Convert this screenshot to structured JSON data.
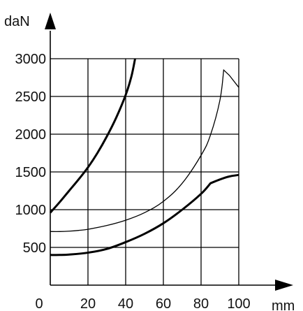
{
  "chart_data": {
    "type": "line",
    "title": "",
    "xlabel": "mm",
    "ylabel": "daN",
    "xlim": [
      0,
      100
    ],
    "ylim": [
      0,
      3000
    ],
    "x_ticks": [
      0,
      20,
      40,
      60,
      80,
      100
    ],
    "y_ticks": [
      500,
      1000,
      1500,
      2000,
      2500,
      3000
    ],
    "x_tick_labels": [
      "0",
      "20",
      "40",
      "60",
      "80",
      "100"
    ],
    "y_tick_labels": [
      "500",
      "1000",
      "1500",
      "2000",
      "2500",
      "3000"
    ],
    "grid": true,
    "legend": "none",
    "series": [
      {
        "style": "thick",
        "x": [
          0,
          5,
          10,
          15,
          20,
          25,
          30,
          35,
          40,
          43,
          45
        ],
        "y": [
          960,
          1100,
          1250,
          1400,
          1560,
          1750,
          1970,
          2220,
          2520,
          2760,
          3000
        ]
      },
      {
        "style": "thin",
        "x": [
          0,
          5,
          10,
          15,
          20,
          30,
          40,
          50,
          60,
          70,
          80,
          85,
          90,
          92,
          95,
          100
        ],
        "y": [
          710,
          710,
          715,
          725,
          740,
          790,
          860,
          960,
          1110,
          1350,
          1720,
          1990,
          2450,
          2850,
          2780,
          2620
        ]
      },
      {
        "style": "thick",
        "x": [
          0,
          5,
          10,
          20,
          30,
          40,
          50,
          60,
          70,
          80,
          85,
          90,
          95,
          100
        ],
        "y": [
          400,
          400,
          405,
          430,
          480,
          570,
          680,
          820,
          1000,
          1210,
          1350,
          1400,
          1440,
          1460
        ]
      }
    ]
  }
}
